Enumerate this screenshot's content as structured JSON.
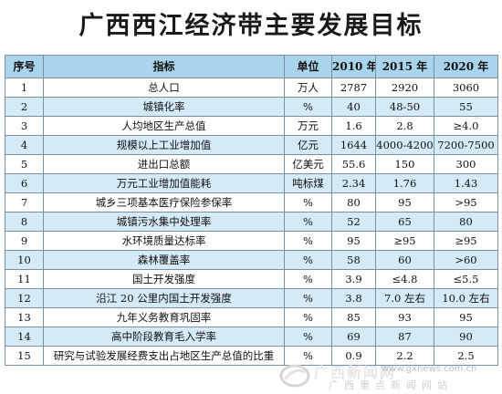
{
  "title": "广西西江经济带主要发展目标",
  "table": {
    "headers": [
      "序号",
      "指标",
      "单位",
      "2010 年",
      "2015 年",
      "2020 年"
    ],
    "rows": [
      {
        "no": "1",
        "indicator": "总人口",
        "unit": "万人",
        "y2010": "2787",
        "y2015": "2920",
        "y2020": "3060"
      },
      {
        "no": "2",
        "indicator": "城镇化率",
        "unit": "%",
        "y2010": "40",
        "y2015": "48-50",
        "y2020": "55"
      },
      {
        "no": "3",
        "indicator": "人均地区生产总值",
        "unit": "万元",
        "y2010": "1.6",
        "y2015": "2.8",
        "y2020": "≥4.0"
      },
      {
        "no": "4",
        "indicator": "规模以上工业增加值",
        "unit": "亿元",
        "y2010": "1644",
        "y2015": "4000-4200",
        "y2020": "7200-7500"
      },
      {
        "no": "5",
        "indicator": "进出口总额",
        "unit": "亿美元",
        "y2010": "55.6",
        "y2015": "150",
        "y2020": "300"
      },
      {
        "no": "6",
        "indicator": "万元工业增加值能耗",
        "unit": "吨标煤",
        "y2010": "2.34",
        "y2015": "1.76",
        "y2020": "1.43"
      },
      {
        "no": "7",
        "indicator": "城乡三项基本医疗保险参保率",
        "unit": "%",
        "y2010": "80",
        "y2015": "95",
        "y2020": ">95"
      },
      {
        "no": "8",
        "indicator": "城镇污水集中处理率",
        "unit": "%",
        "y2010": "52",
        "y2015": "65",
        "y2020": "80"
      },
      {
        "no": "9",
        "indicator": "水环境质量达标率",
        "unit": "%",
        "y2010": "95",
        "y2015": "≥95",
        "y2020": "≥95"
      },
      {
        "no": "10",
        "indicator": "森林覆盖率",
        "unit": "%",
        "y2010": "58",
        "y2015": "60",
        "y2020": ">60"
      },
      {
        "no": "11",
        "indicator": "国土开发强度",
        "unit": "%",
        "y2010": "3.9",
        "y2015": "≤4.8",
        "y2020": "≤5.5"
      },
      {
        "no": "12",
        "indicator": "沿江 20 公里内国土开发强度",
        "unit": "%",
        "y2010": "3.8",
        "y2015": "7.0 左右",
        "y2020": "10.0 左右"
      },
      {
        "no": "13",
        "indicator": "九年义务教育巩固率",
        "unit": "%",
        "y2010": "85",
        "y2015": "93",
        "y2020": "95"
      },
      {
        "no": "14",
        "indicator": "高中阶段教育毛入学率",
        "unit": "%",
        "y2010": "69",
        "y2015": "87",
        "y2020": "90"
      },
      {
        "no": "15",
        "indicator": "研究与试验发展经费支出占地区生产总值的比重",
        "unit": "%",
        "y2010": "0.9",
        "y2015": "2.2",
        "y2020": "2.5"
      }
    ]
  },
  "watermark": {
    "name": "广西新闻网",
    "url": "www.gxnews.com.cn",
    "tagline": "广西重点新闻网站",
    "color": "#d8d8d8"
  },
  "colors": {
    "header_bg": "#a9d4ec",
    "stripe_bg": "#d4eaf7",
    "border": "#7a8fa0"
  }
}
